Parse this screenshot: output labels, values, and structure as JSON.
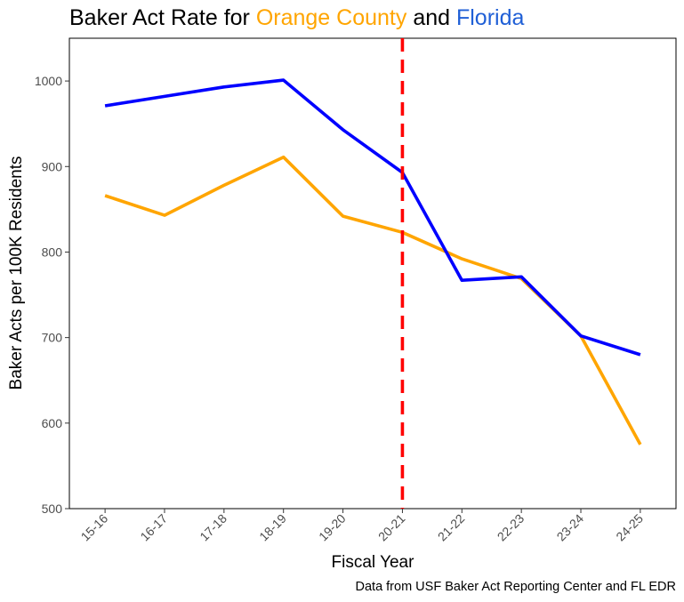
{
  "chart_data": {
    "type": "line",
    "title_parts": [
      {
        "text": "Baker Act Rate for ",
        "color": "#000000"
      },
      {
        "text": "Orange County",
        "color": "#FFA500"
      },
      {
        "text": " and ",
        "color": "#000000"
      },
      {
        "text": "Florida",
        "color": "#1F5FD6"
      }
    ],
    "xlabel": "Fiscal Year",
    "ylabel": "Baker Acts per 100K Residents",
    "caption": "Data from USF Baker Act Reporting Center and FL EDR",
    "categories": [
      "15-16",
      "16-17",
      "17-18",
      "18-19",
      "19-20",
      "20-21",
      "21-22",
      "22-23",
      "23-24",
      "24-25"
    ],
    "ylim": [
      500,
      1050
    ],
    "yticks": [
      500,
      600,
      700,
      800,
      900,
      1000
    ],
    "grid": false,
    "series": [
      {
        "key": "orange",
        "color": "#FFA500",
        "values": [
          866,
          843,
          878,
          911,
          842,
          823,
          792,
          769,
          702,
          575
        ]
      },
      {
        "key": "florida",
        "color": "#0000FF",
        "values": [
          971,
          982,
          993,
          1001,
          943,
          893,
          767,
          771,
          702,
          680
        ]
      }
    ],
    "reference_line": {
      "category": "20-21",
      "color": "#FF0000",
      "style": "dashed"
    }
  }
}
